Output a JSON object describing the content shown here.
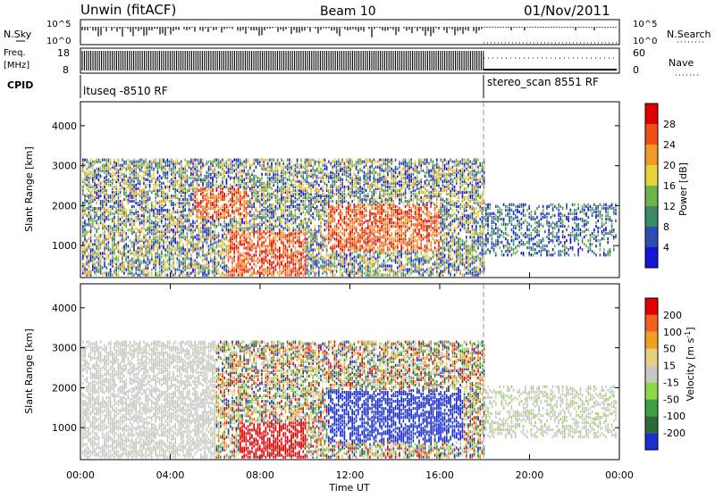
{
  "header": {
    "title": "Unwin (fitACF)",
    "beam": "Beam 10",
    "date": "01/Nov/2011"
  },
  "panels": {
    "nsky": {
      "left_label": "N.Sky",
      "left_ticks": [
        "10^5",
        "10^0"
      ],
      "right_ticks": [
        "10^5",
        "10^0"
      ],
      "right_label": "N.Search"
    },
    "freq": {
      "left_label_1": "Freq.",
      "left_label_2": "[MHz]",
      "left_ticks": [
        "18",
        "8"
      ],
      "right_ticks": [
        "60",
        "0"
      ],
      "right_label": "Nave"
    },
    "cpid": {
      "label": "CPID",
      "segments": [
        {
          "text": "ltuseq -8510 RF"
        },
        {
          "text": "stereo_scan 8551 RF"
        }
      ]
    }
  },
  "chart_data": [
    {
      "type": "heatmap",
      "name": "power",
      "ylabel": "Slant Range [km]",
      "yticks": [
        1000,
        2000,
        3000,
        4000
      ],
      "ylim": [
        200,
        4600
      ],
      "xlim_hours": [
        0,
        24
      ],
      "colorbar": {
        "label": "Power [dB]",
        "ticks": [
          "28",
          "24",
          "20",
          "16",
          "12",
          "8",
          "4"
        ],
        "colors": [
          "#1414d8",
          "#2a4fb0",
          "#3a8a6a",
          "#6fb44a",
          "#e6d23a",
          "#f09a28",
          "#f05018",
          "#e00000"
        ]
      }
    },
    {
      "type": "heatmap",
      "name": "velocity",
      "ylabel": "Slant Range [km]",
      "yticks": [
        1000,
        2000,
        3000,
        4000
      ],
      "ylim": [
        200,
        4600
      ],
      "xlim_hours": [
        0,
        24
      ],
      "xlabel": "Time UT",
      "xticks": [
        "00:00",
        "04:00",
        "08:00",
        "12:00",
        "16:00",
        "20:00",
        "00:00"
      ],
      "colorbar": {
        "label": "Velocity [m s-1]",
        "ticks": [
          "200",
          "100",
          "50",
          "15",
          "-15",
          "-50",
          "-100",
          "-200"
        ],
        "colors": [
          "#1a2fd0",
          "#2c6a3a",
          "#3ca040",
          "#8cd84a",
          "#c8c8c0",
          "#e8d080",
          "#f0a020",
          "#f06020",
          "#e00000"
        ]
      }
    }
  ],
  "legend_right": {
    "nsearch": "N.Search",
    "nave": "Nave"
  }
}
